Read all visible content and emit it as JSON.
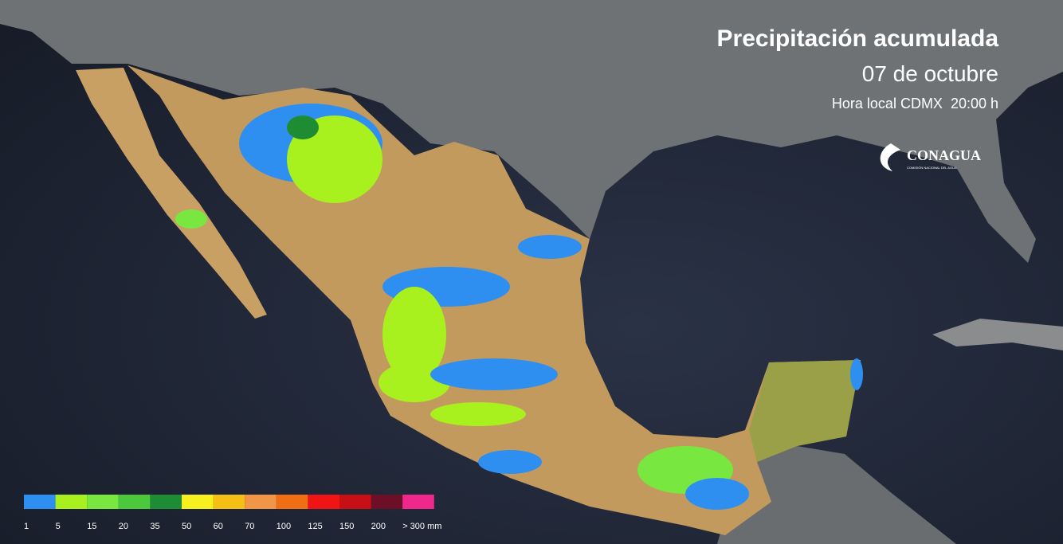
{
  "header": {
    "title": "Precipitación acumulada",
    "date": "07 de octubre",
    "time": "Hora local CDMX  20:00 h"
  },
  "logo": {
    "name": "CONAGUA",
    "subtitle": "COMISIÓN NACIONAL DEL AGUA"
  },
  "legend": {
    "items": [
      {
        "label": "1",
        "color": "#2f8ff0"
      },
      {
        "label": "5",
        "color": "#a8f01e"
      },
      {
        "label": "15",
        "color": "#78e840"
      },
      {
        "label": "20",
        "color": "#4cc83c"
      },
      {
        "label": "35",
        "color": "#1e8c32"
      },
      {
        "label": "50",
        "color": "#f5f01e"
      },
      {
        "label": "60",
        "color": "#f5c014"
      },
      {
        "label": "70",
        "color": "#f09646"
      },
      {
        "label": "100",
        "color": "#f06e14"
      },
      {
        "label": "125",
        "color": "#f01414"
      },
      {
        "label": "150",
        "color": "#c80f14"
      },
      {
        "label": "200",
        "color": "#6e0f28"
      },
      {
        "label": "> 300 mm",
        "color": "#f0288c"
      }
    ]
  }
}
